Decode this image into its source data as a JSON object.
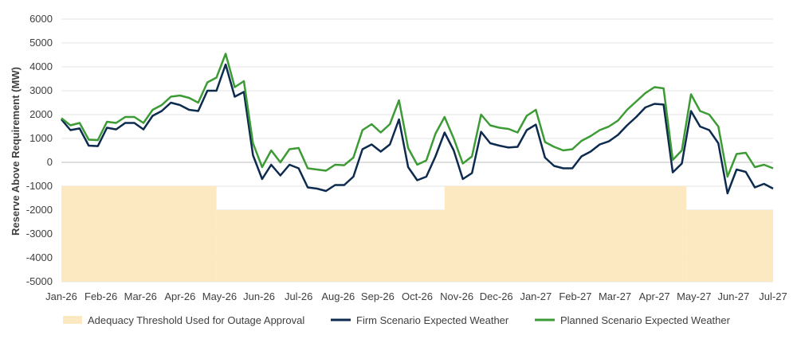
{
  "chart_data": {
    "type": "line",
    "ylabel": "Reserve Above Requirement (MW)",
    "ylim": [
      -5000,
      6000
    ],
    "yticks": [
      -5000,
      -4000,
      -3000,
      -2000,
      -1000,
      0,
      1000,
      2000,
      3000,
      4000,
      5000,
      6000
    ],
    "grid": true,
    "legend_position": "bottom",
    "x_tick_labels": [
      "Jan-26",
      "Feb-26",
      "Mar-26",
      "Apr-26",
      "May-26",
      "Jun-26",
      "Jul-26",
      "Aug-26",
      "Sep-26",
      "Oct-26",
      "Nov-26",
      "Dec-26",
      "Jan-27",
      "Feb-27",
      "Mar-27",
      "Apr-27",
      "May-27",
      "Jun-27",
      "Jul-27"
    ],
    "x_range": [
      0,
      78
    ],
    "threshold": {
      "name": "Adequacy Threshold Used for Outage Approval",
      "color": "#fce9c2",
      "steps": [
        {
          "from": 0,
          "to": 17,
          "value": -1000
        },
        {
          "from": 17,
          "to": 42,
          "value": -2000
        },
        {
          "from": 42,
          "to": 68.5,
          "value": -1000
        },
        {
          "from": 68.5,
          "to": 78,
          "value": -2000
        }
      ],
      "base": -5000
    },
    "series": [
      {
        "name": "Firm Scenario Expected Weather",
        "color": "#0d2a4f",
        "x": [
          0,
          1,
          2,
          3,
          4,
          5,
          6,
          7,
          8,
          9,
          10,
          11,
          12,
          13,
          14,
          15,
          16,
          17,
          18,
          19,
          20,
          21,
          22,
          23,
          24,
          25,
          26,
          27,
          28,
          29,
          30,
          31,
          32,
          33,
          34,
          35,
          36,
          37,
          38,
          39,
          40,
          41,
          42,
          43,
          44,
          45,
          46,
          47,
          48,
          49,
          50,
          51,
          52,
          53,
          54,
          55,
          56,
          57,
          58,
          59,
          60,
          61,
          62,
          63,
          64,
          65,
          66,
          67,
          68,
          69,
          70,
          71,
          72,
          73,
          74,
          75,
          76,
          77,
          78
        ],
        "values": [
          1800,
          1350,
          1420,
          700,
          680,
          1450,
          1380,
          1650,
          1650,
          1380,
          1950,
          2150,
          2500,
          2400,
          2200,
          2150,
          3000,
          3000,
          4100,
          2750,
          2950,
          300,
          -700,
          -100,
          -550,
          -100,
          -250,
          -1050,
          -1100,
          -1200,
          -950,
          -950,
          -600,
          550,
          750,
          450,
          750,
          1800,
          -200,
          -750,
          -600,
          250,
          1250,
          500,
          -700,
          -450,
          1280,
          800,
          700,
          620,
          650,
          1350,
          1580,
          200,
          -150,
          -250,
          -250,
          250,
          450,
          750,
          880,
          1150,
          1550,
          1900,
          2300,
          2450,
          2420,
          -420,
          -50,
          2150,
          1500,
          1350,
          800,
          -1300,
          -300,
          -400,
          -1050,
          -900,
          -1100
        ]
      },
      {
        "name": "Planned Scenario Expected Weather",
        "color": "#3d9b35",
        "x": [
          0,
          1,
          2,
          3,
          4,
          5,
          6,
          7,
          8,
          9,
          10,
          11,
          12,
          13,
          14,
          15,
          16,
          17,
          18,
          19,
          20,
          21,
          22,
          23,
          24,
          25,
          26,
          27,
          28,
          29,
          30,
          31,
          32,
          33,
          34,
          35,
          36,
          37,
          38,
          39,
          40,
          41,
          42,
          43,
          44,
          45,
          46,
          47,
          48,
          49,
          50,
          51,
          52,
          53,
          54,
          55,
          56,
          57,
          58,
          59,
          60,
          61,
          62,
          63,
          64,
          65,
          66,
          67,
          68,
          69,
          70,
          71,
          72,
          73,
          74,
          75,
          76,
          77,
          78
        ],
        "values": [
          1850,
          1550,
          1650,
          950,
          930,
          1700,
          1650,
          1900,
          1900,
          1650,
          2200,
          2400,
          2750,
          2800,
          2700,
          2500,
          3350,
          3550,
          4550,
          3150,
          3400,
          800,
          -200,
          500,
          0,
          550,
          600,
          -250,
          -300,
          -350,
          -100,
          -120,
          200,
          1350,
          1600,
          1250,
          1600,
          2600,
          600,
          -100,
          80,
          1200,
          1900,
          1000,
          -50,
          250,
          2000,
          1550,
          1450,
          1400,
          1250,
          1950,
          2200,
          850,
          650,
          500,
          550,
          900,
          1100,
          1350,
          1500,
          1750,
          2200,
          2550,
          2900,
          3150,
          3100,
          100,
          500,
          2850,
          2150,
          2000,
          1500,
          -600,
          350,
          400,
          -200,
          -100,
          -250
        ]
      }
    ]
  }
}
